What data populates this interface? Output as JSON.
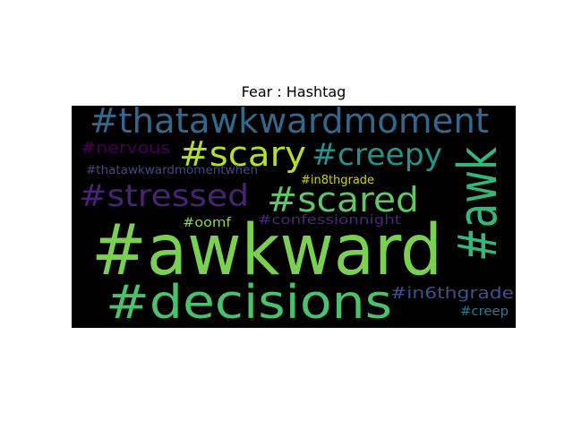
{
  "chart_data": {
    "type": "wordcloud",
    "title": "Fear : Hashtag",
    "background": "#000000",
    "words": [
      {
        "text": "#thatawkwardmoment",
        "color": "#31688e"
      },
      {
        "text": "#scary",
        "color": "#b5de2b"
      },
      {
        "text": "#creepy",
        "color": "#26928d"
      },
      {
        "text": "#nervous",
        "color": "#440154"
      },
      {
        "text": "#thatawkwardmomentwhen",
        "color": "#3e4989"
      },
      {
        "text": "#awk",
        "color": "#35b779"
      },
      {
        "text": "#stressed",
        "color": "#482475"
      },
      {
        "text": "#scared",
        "color": "#5ec962"
      },
      {
        "text": "#in8thgrade",
        "color": "#c8d320"
      },
      {
        "text": "#oomf",
        "color": "#8fd744"
      },
      {
        "text": "#confessionnight",
        "color": "#482878"
      },
      {
        "text": "#awkward",
        "color": "#7ad151"
      },
      {
        "text": "#decisions",
        "color": "#4ac16d"
      },
      {
        "text": "#in6thgrade",
        "color": "#3b528b"
      },
      {
        "text": "#creep",
        "color": "#2a788e"
      }
    ]
  }
}
